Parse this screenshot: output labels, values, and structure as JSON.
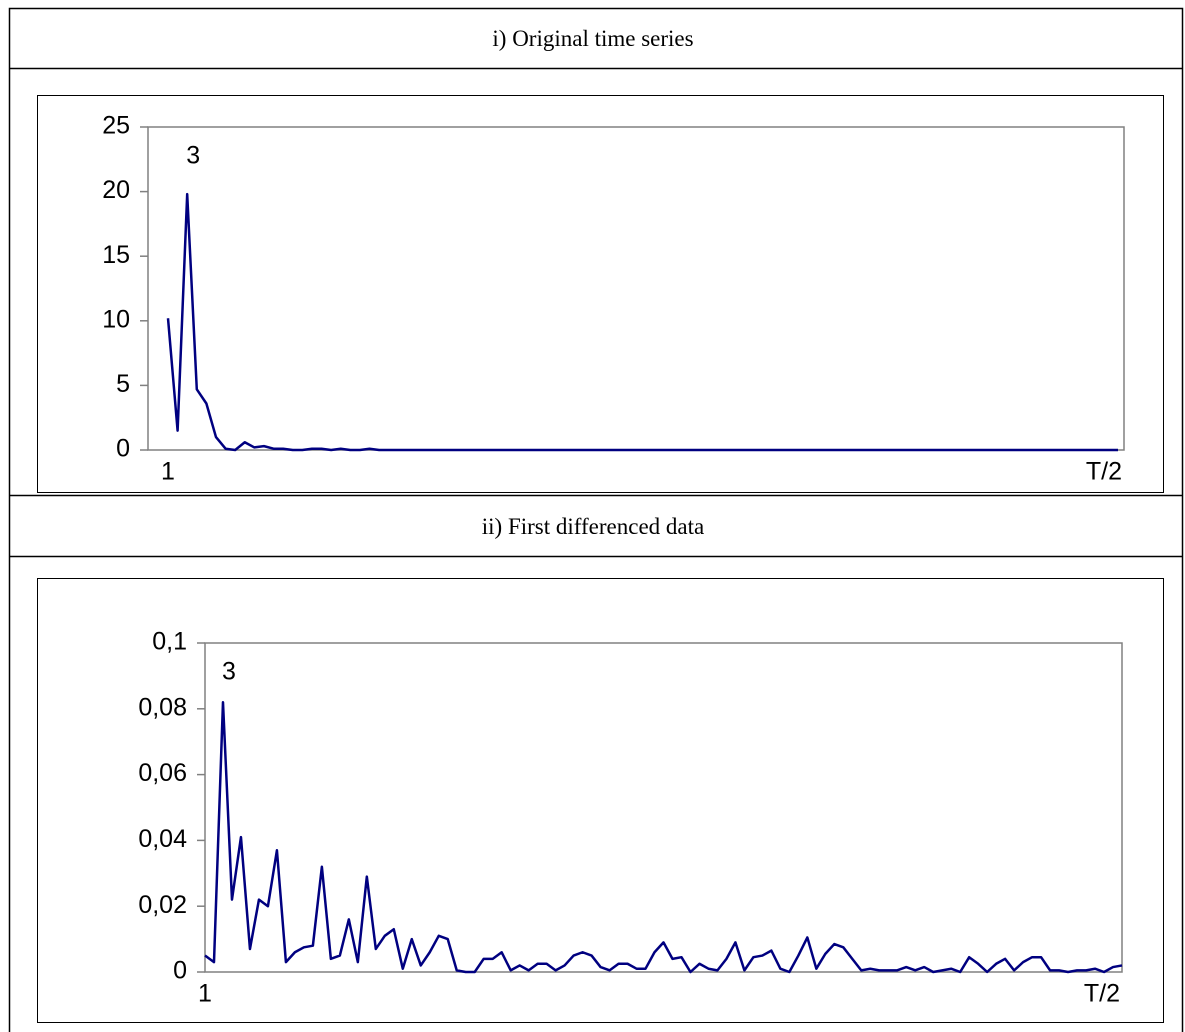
{
  "chart_data": [
    {
      "type": "line",
      "title": "i) Original time series",
      "annotation": "3",
      "categories": [
        "1",
        null,
        null,
        null,
        null,
        null,
        null,
        null,
        null,
        null,
        null,
        null,
        null,
        null,
        null,
        null,
        null,
        null,
        null,
        null,
        null,
        null,
        null,
        null,
        null,
        null,
        null,
        null,
        null,
        null,
        null,
        null,
        null,
        null,
        null,
        null,
        null,
        null,
        null,
        null,
        null,
        null,
        null,
        null,
        null,
        null,
        null,
        null,
        null,
        null,
        null,
        null,
        null,
        null,
        null,
        null,
        null,
        null,
        null,
        null,
        null,
        null,
        null,
        null,
        null,
        null,
        null,
        null,
        null,
        null,
        null,
        null,
        null,
        null,
        null,
        null,
        null,
        null,
        null,
        null,
        null,
        null,
        null,
        null,
        null,
        null,
        null,
        null,
        null,
        null,
        null,
        null,
        null,
        null,
        null,
        null,
        null,
        null,
        null,
        "T/2"
      ],
      "values": [
        10.2,
        1.5,
        19.8,
        4.7,
        3.6,
        1.0,
        0.1,
        0.0,
        0.6,
        0.2,
        0.3,
        0.1,
        0.1,
        0.0,
        0.0,
        0.1,
        0.1,
        0.0,
        0.1,
        0.0,
        0.0,
        0.1,
        0,
        0,
        0,
        0,
        0,
        0,
        0,
        0,
        0,
        0,
        0,
        0,
        0,
        0,
        0,
        0,
        0,
        0,
        0,
        0,
        0,
        0,
        0,
        0,
        0,
        0,
        0,
        0,
        0,
        0,
        0,
        0,
        0,
        0,
        0,
        0,
        0,
        0,
        0,
        0,
        0,
        0,
        0,
        0,
        0,
        0,
        0,
        0,
        0,
        0,
        0,
        0,
        0,
        0,
        0,
        0,
        0,
        0,
        0,
        0,
        0,
        0,
        0,
        0,
        0,
        0,
        0,
        0,
        0,
        0,
        0,
        0,
        0,
        0,
        0,
        0,
        0,
        0
      ],
      "color": "#000080",
      "ylim": [
        0,
        25
      ],
      "yticks": [
        0,
        5,
        10,
        15,
        20,
        25
      ]
    },
    {
      "type": "line",
      "title": "ii) First differenced data",
      "annotation": "3",
      "categories": [
        "1",
        null,
        null,
        null,
        null,
        null,
        null,
        null,
        null,
        null,
        null,
        null,
        null,
        null,
        null,
        null,
        null,
        null,
        null,
        null,
        null,
        null,
        null,
        null,
        null,
        null,
        null,
        null,
        null,
        null,
        null,
        null,
        null,
        null,
        null,
        null,
        null,
        null,
        null,
        null,
        null,
        null,
        null,
        null,
        null,
        null,
        null,
        null,
        null,
        null,
        null,
        null,
        null,
        null,
        null,
        null,
        null,
        null,
        null,
        null,
        null,
        null,
        null,
        null,
        null,
        null,
        null,
        null,
        null,
        null,
        null,
        null,
        null,
        null,
        null,
        null,
        null,
        null,
        null,
        null,
        null,
        null,
        null,
        null,
        null,
        null,
        null,
        null,
        null,
        null,
        null,
        null,
        null,
        null,
        null,
        null,
        null,
        null,
        null,
        null,
        null,
        null,
        "T/2"
      ],
      "values": [
        0.005,
        0.003,
        0.082,
        0.022,
        0.041,
        0.007,
        0.022,
        0.02,
        0.037,
        0.003,
        0.006,
        0.0075,
        0.008,
        0.032,
        0.004,
        0.005,
        0.016,
        0.003,
        0.029,
        0.007,
        0.011,
        0.013,
        0.001,
        0.01,
        0.002,
        0.006,
        0.011,
        0.01,
        0.0005,
        0,
        0,
        0.004,
        0.004,
        0.006,
        0.0005,
        0.002,
        0.0005,
        0.0025,
        0.0025,
        0.0005,
        0.002,
        0.005,
        0.006,
        0.005,
        0.0015,
        0.0005,
        0.0025,
        0.0025,
        0.001,
        0.001,
        0.006,
        0.009,
        0.004,
        0.0045,
        0,
        0.0025,
        0.001,
        0.0005,
        0.004,
        0.009,
        0.0005,
        0.0045,
        0.005,
        0.0065,
        0.001,
        0,
        0.005,
        0.0105,
        0.001,
        0.0055,
        0.0085,
        0.0075,
        0.004,
        0.0005,
        0.001,
        0.0005,
        0.0005,
        0.0005,
        0.0015,
        0.0005,
        0.0015,
        0,
        0.0005,
        0.001,
        0,
        0.0045,
        0.0025,
        0,
        0.0025,
        0.004,
        0.0005,
        0.003,
        0.0045,
        0.0045,
        0.0005,
        0.0005,
        0,
        0.0005,
        0.0005,
        0.001,
        0,
        0.0015,
        0.002
      ],
      "color": "#000080",
      "ylim": [
        0,
        0.1
      ],
      "yticks": [
        0,
        {
          "value": 0.02,
          "label": "0,02"
        },
        {
          "value": 0.04,
          "label": "0,04"
        },
        {
          "value": 0.06,
          "label": "0,06"
        },
        {
          "value": 0.08,
          "label": "0,08"
        },
        {
          "value": 0.1,
          "label": "0,1"
        }
      ]
    }
  ]
}
